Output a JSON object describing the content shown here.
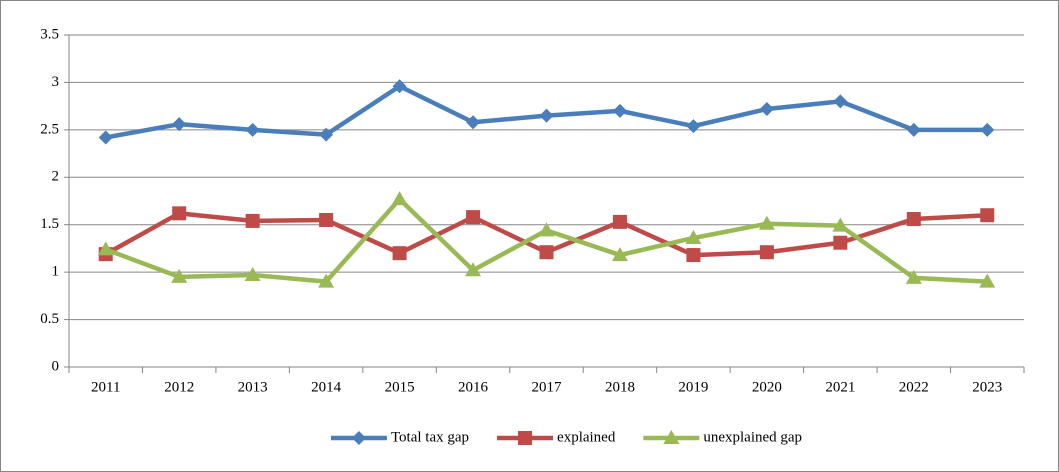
{
  "chart_data": {
    "type": "line",
    "categories": [
      "2011",
      "2012",
      "2013",
      "2014",
      "2015",
      "2016",
      "2017",
      "2018",
      "2019",
      "2020",
      "2021",
      "2022",
      "2023"
    ],
    "series": [
      {
        "name": "Total tax gap",
        "color": "#4a7ebb",
        "marker": "diamond",
        "values": [
          2.42,
          2.56,
          2.5,
          2.45,
          2.96,
          2.58,
          2.65,
          2.7,
          2.54,
          2.72,
          2.8,
          2.5,
          2.5
        ]
      },
      {
        "name": "explained",
        "color": "#be4b48",
        "marker": "square",
        "values": [
          1.19,
          1.62,
          1.54,
          1.55,
          1.2,
          1.58,
          1.21,
          1.53,
          1.18,
          1.21,
          1.31,
          1.56,
          1.6
        ]
      },
      {
        "name": "unexplained gap",
        "color": "#98b954",
        "marker": "triangle",
        "values": [
          1.24,
          0.95,
          0.97,
          0.9,
          1.77,
          1.02,
          1.44,
          1.18,
          1.36,
          1.51,
          1.49,
          0.94,
          0.9
        ]
      }
    ],
    "ylim": [
      0,
      3.5
    ],
    "yticks": [
      0,
      0.5,
      1,
      1.5,
      2,
      2.5,
      3,
      3.5
    ],
    "grid": true,
    "legend": "bottom"
  }
}
